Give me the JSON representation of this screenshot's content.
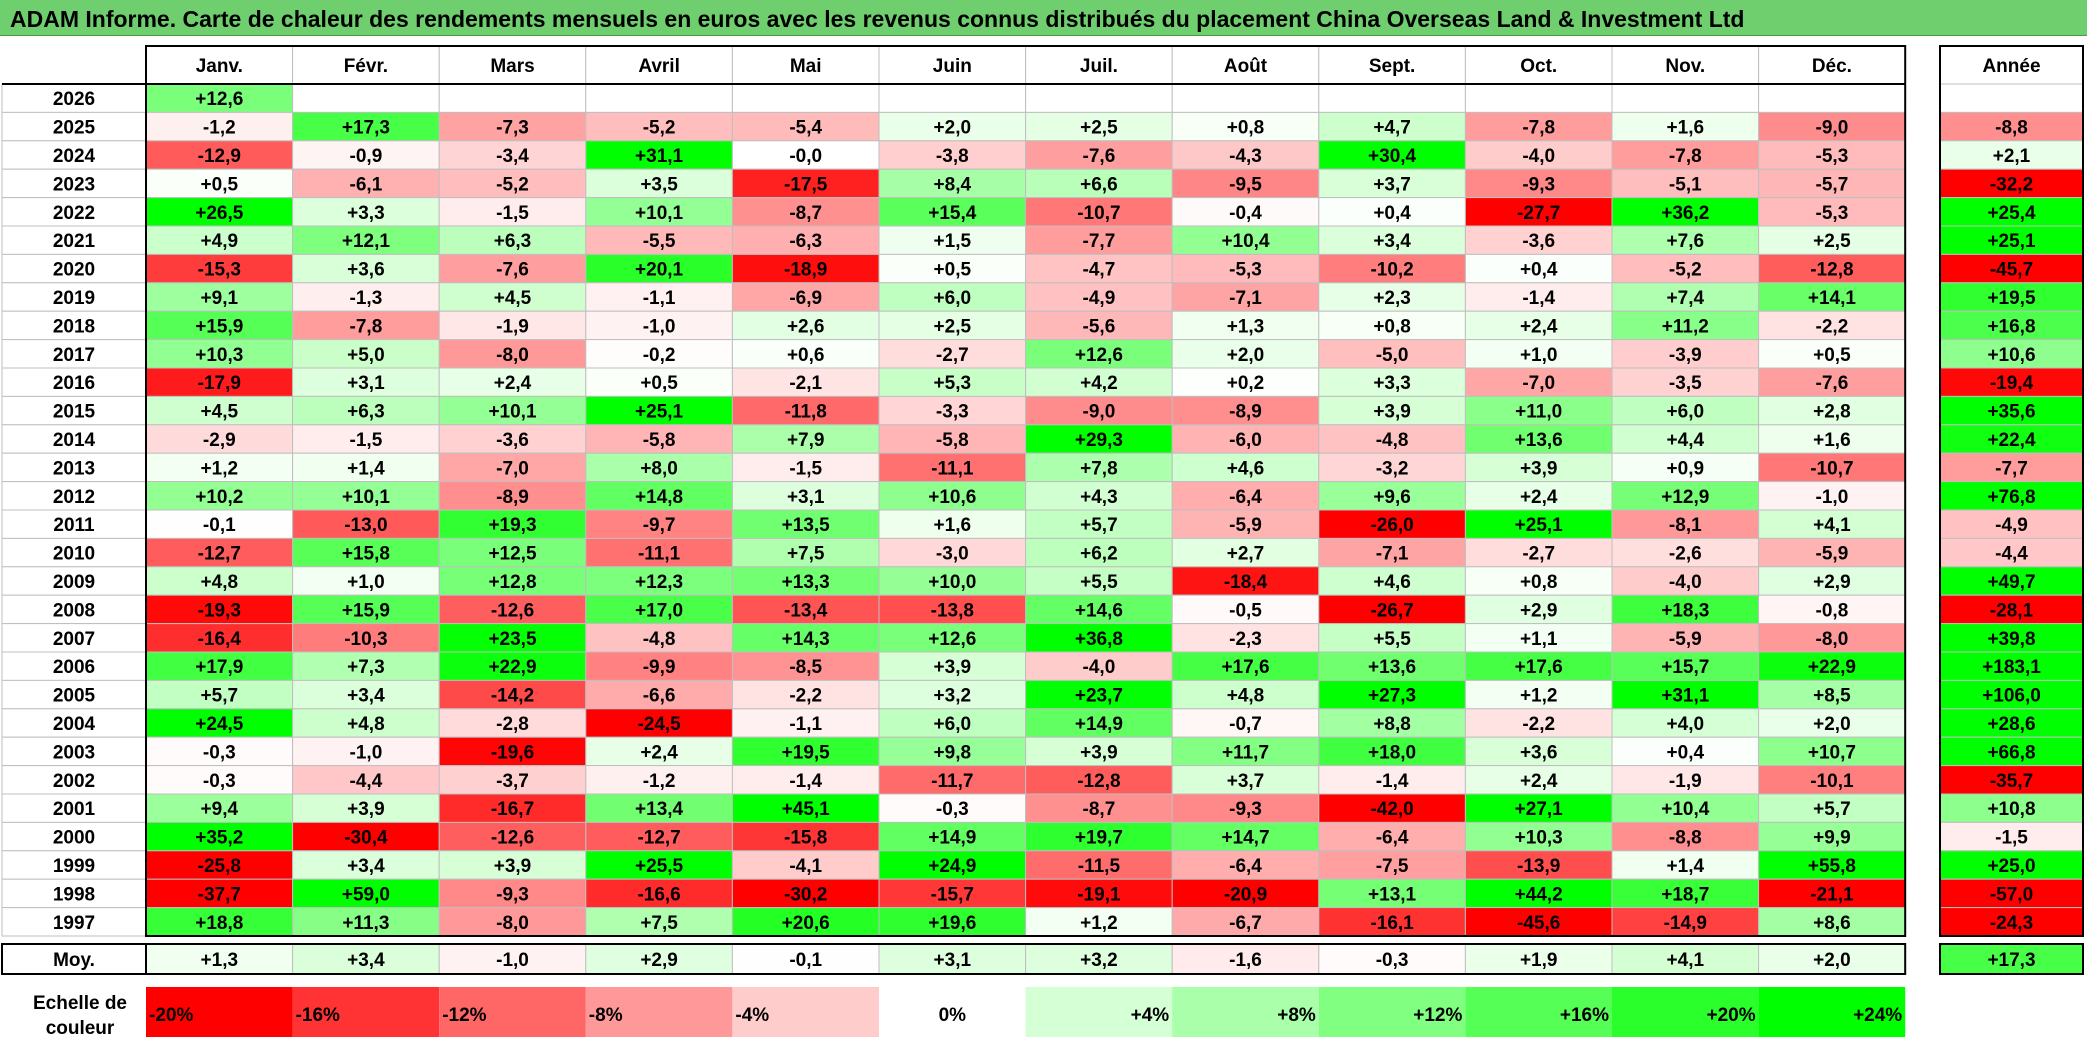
{
  "title": "ADAM Informe. Carte de chaleur des rendements mensuels en euros avec les revenus connus distribués du placement China Overseas Land & Investment Ltd",
  "chart_data": {
    "type": "heatmap",
    "months": [
      "Janv.",
      "Févr.",
      "Mars",
      "Avril",
      "Mai",
      "Juin",
      "Juil.",
      "Août",
      "Sept.",
      "Oct.",
      "Nov.",
      "Déc."
    ],
    "year_header": "Année",
    "rows": [
      {
        "year": "2026",
        "months": [
          "+12,6",
          "",
          "",
          "",
          "",
          "",
          "",
          "",
          "",
          "",
          "",
          ""
        ],
        "annual": ""
      },
      {
        "year": "2025",
        "months": [
          "-1,2",
          "+17,3",
          "-7,3",
          "-5,2",
          "-5,4",
          "+2,0",
          "+2,5",
          "+0,8",
          "+4,7",
          "-7,8",
          "+1,6",
          "-9,0"
        ],
        "annual": "-8,8"
      },
      {
        "year": "2024",
        "months": [
          "-12,9",
          "-0,9",
          "-3,4",
          "+31,1",
          "-0,0",
          "-3,8",
          "-7,6",
          "-4,3",
          "+30,4",
          "-4,0",
          "-7,8",
          "-5,3"
        ],
        "annual": "+2,1"
      },
      {
        "year": "2023",
        "months": [
          "+0,5",
          "-6,1",
          "-5,2",
          "+3,5",
          "-17,5",
          "+8,4",
          "+6,6",
          "-9,5",
          "+3,7",
          "-9,3",
          "-5,1",
          "-5,7"
        ],
        "annual": "-32,2"
      },
      {
        "year": "2022",
        "months": [
          "+26,5",
          "+3,3",
          "-1,5",
          "+10,1",
          "-8,7",
          "+15,4",
          "-10,7",
          "-0,4",
          "+0,4",
          "-27,7",
          "+36,2",
          "-5,3"
        ],
        "annual": "+25,4"
      },
      {
        "year": "2021",
        "months": [
          "+4,9",
          "+12,1",
          "+6,3",
          "-5,5",
          "-6,3",
          "+1,5",
          "-7,7",
          "+10,4",
          "+3,4",
          "-3,6",
          "+7,6",
          "+2,5"
        ],
        "annual": "+25,1"
      },
      {
        "year": "2020",
        "months": [
          "-15,3",
          "+3,6",
          "-7,6",
          "+20,1",
          "-18,9",
          "+0,5",
          "-4,7",
          "-5,3",
          "-10,2",
          "+0,4",
          "-5,2",
          "-12,8"
        ],
        "annual": "-45,7"
      },
      {
        "year": "2019",
        "months": [
          "+9,1",
          "-1,3",
          "+4,5",
          "-1,1",
          "-6,9",
          "+6,0",
          "-4,9",
          "-7,1",
          "+2,3",
          "-1,4",
          "+7,4",
          "+14,1"
        ],
        "annual": "+19,5"
      },
      {
        "year": "2018",
        "months": [
          "+15,9",
          "-7,8",
          "-1,9",
          "-1,0",
          "+2,6",
          "+2,5",
          "-5,6",
          "+1,3",
          "+0,8",
          "+2,4",
          "+11,2",
          "-2,2"
        ],
        "annual": "+16,8"
      },
      {
        "year": "2017",
        "months": [
          "+10,3",
          "+5,0",
          "-8,0",
          "-0,2",
          "+0,6",
          "-2,7",
          "+12,6",
          "+2,0",
          "-5,0",
          "+1,0",
          "-3,9",
          "+0,5"
        ],
        "annual": "+10,6"
      },
      {
        "year": "2016",
        "months": [
          "-17,9",
          "+3,1",
          "+2,4",
          "+0,5",
          "-2,1",
          "+5,3",
          "+4,2",
          "+0,2",
          "+3,3",
          "-7,0",
          "-3,5",
          "-7,6"
        ],
        "annual": "-19,4"
      },
      {
        "year": "2015",
        "months": [
          "+4,5",
          "+6,3",
          "+10,1",
          "+25,1",
          "-11,8",
          "-3,3",
          "-9,0",
          "-8,9",
          "+3,9",
          "+11,0",
          "+6,0",
          "+2,8"
        ],
        "annual": "+35,6"
      },
      {
        "year": "2014",
        "months": [
          "-2,9",
          "-1,5",
          "-3,6",
          "-5,8",
          "+7,9",
          "-5,8",
          "+29,3",
          "-6,0",
          "-4,8",
          "+13,6",
          "+4,4",
          "+1,6"
        ],
        "annual": "+22,4"
      },
      {
        "year": "2013",
        "months": [
          "+1,2",
          "+1,4",
          "-7,0",
          "+8,0",
          "-1,5",
          "-11,1",
          "+7,8",
          "+4,6",
          "-3,2",
          "+3,9",
          "+0,9",
          "-10,7"
        ],
        "annual": "-7,7"
      },
      {
        "year": "2012",
        "months": [
          "+10,2",
          "+10,1",
          "-8,9",
          "+14,8",
          "+3,1",
          "+10,6",
          "+4,3",
          "-6,4",
          "+9,6",
          "+2,4",
          "+12,9",
          "-1,0"
        ],
        "annual": "+76,8"
      },
      {
        "year": "2011",
        "months": [
          "-0,1",
          "-13,0",
          "+19,3",
          "-9,7",
          "+13,5",
          "+1,6",
          "+5,7",
          "-5,9",
          "-26,0",
          "+25,1",
          "-8,1",
          "+4,1"
        ],
        "annual": "-4,9"
      },
      {
        "year": "2010",
        "months": [
          "-12,7",
          "+15,8",
          "+12,5",
          "-11,1",
          "+7,5",
          "-3,0",
          "+6,2",
          "+2,7",
          "-7,1",
          "-2,7",
          "-2,6",
          "-5,9"
        ],
        "annual": "-4,4"
      },
      {
        "year": "2009",
        "months": [
          "+4,8",
          "+1,0",
          "+12,8",
          "+12,3",
          "+13,3",
          "+10,0",
          "+5,5",
          "-18,4",
          "+4,6",
          "+0,8",
          "-4,0",
          "+2,9"
        ],
        "annual": "+49,7"
      },
      {
        "year": "2008",
        "months": [
          "-19,3",
          "+15,9",
          "-12,6",
          "+17,0",
          "-13,4",
          "-13,8",
          "+14,6",
          "-0,5",
          "-26,7",
          "+2,9",
          "+18,3",
          "-0,8"
        ],
        "annual": "-28,1"
      },
      {
        "year": "2007",
        "months": [
          "-16,4",
          "-10,3",
          "+23,5",
          "-4,8",
          "+14,3",
          "+12,6",
          "+36,8",
          "-2,3",
          "+5,5",
          "+1,1",
          "-5,9",
          "-8,0"
        ],
        "annual": "+39,8"
      },
      {
        "year": "2006",
        "months": [
          "+17,9",
          "+7,3",
          "+22,9",
          "-9,9",
          "-8,5",
          "+3,9",
          "-4,0",
          "+17,6",
          "+13,6",
          "+17,6",
          "+15,7",
          "+22,9"
        ],
        "annual": "+183,1"
      },
      {
        "year": "2005",
        "months": [
          "+5,7",
          "+3,4",
          "-14,2",
          "-6,6",
          "-2,2",
          "+3,2",
          "+23,7",
          "+4,8",
          "+27,3",
          "+1,2",
          "+31,1",
          "+8,5"
        ],
        "annual": "+106,0"
      },
      {
        "year": "2004",
        "months": [
          "+24,5",
          "+4,8",
          "-2,8",
          "-24,5",
          "-1,1",
          "+6,0",
          "+14,9",
          "-0,7",
          "+8,8",
          "-2,2",
          "+4,0",
          "+2,0"
        ],
        "annual": "+28,6"
      },
      {
        "year": "2003",
        "months": [
          "-0,3",
          "-1,0",
          "-19,6",
          "+2,4",
          "+19,5",
          "+9,8",
          "+3,9",
          "+11,7",
          "+18,0",
          "+3,6",
          "+0,4",
          "+10,7"
        ],
        "annual": "+66,8"
      },
      {
        "year": "2002",
        "months": [
          "-0,3",
          "-4,4",
          "-3,7",
          "-1,2",
          "-1,4",
          "-11,7",
          "-12,8",
          "+3,7",
          "-1,4",
          "+2,4",
          "-1,9",
          "-10,1"
        ],
        "annual": "-35,7"
      },
      {
        "year": "2001",
        "months": [
          "+9,4",
          "+3,9",
          "-16,7",
          "+13,4",
          "+45,1",
          "-0,3",
          "-8,7",
          "-9,3",
          "-42,0",
          "+27,1",
          "+10,4",
          "+5,7"
        ],
        "annual": "+10,8"
      },
      {
        "year": "2000",
        "months": [
          "+35,2",
          "-30,4",
          "-12,6",
          "-12,7",
          "-15,8",
          "+14,9",
          "+19,7",
          "+14,7",
          "-6,4",
          "+10,3",
          "-8,8",
          "+9,9"
        ],
        "annual": "-1,5"
      },
      {
        "year": "1999",
        "months": [
          "-25,8",
          "+3,4",
          "+3,9",
          "+25,5",
          "-4,1",
          "+24,9",
          "-11,5",
          "-6,4",
          "-7,5",
          "-13,9",
          "+1,4",
          "+55,8"
        ],
        "annual": "+25,0"
      },
      {
        "year": "1998",
        "months": [
          "-37,7",
          "+59,0",
          "-9,3",
          "-16,6",
          "-30,2",
          "-15,7",
          "-19,1",
          "-20,9",
          "+13,1",
          "+44,2",
          "+18,7",
          "-21,1"
        ],
        "annual": "-57,0"
      },
      {
        "year": "1997",
        "months": [
          "+18,8",
          "+11,3",
          "-8,0",
          "+7,5",
          "+20,6",
          "+19,6",
          "+1,2",
          "-6,7",
          "-16,1",
          "-45,6",
          "-14,9",
          "+8,6"
        ],
        "annual": "-24,3"
      }
    ],
    "average": {
      "label": "Moy.",
      "months": [
        "+1,3",
        "+3,4",
        "-1,0",
        "+2,9",
        "-0,1",
        "+3,1",
        "+3,2",
        "-1,6",
        "-0,3",
        "+1,9",
        "+4,1",
        "+2,0"
      ],
      "annual": "+17,3"
    },
    "color_scale": {
      "label_line1": "Echelle de",
      "label_line2": "couleur",
      "stops": [
        "-20%",
        "-16%",
        "-12%",
        "-8%",
        "-4%",
        "0%",
        "+4%",
        "+8%",
        "+12%",
        "+16%",
        "+20%",
        "+24%"
      ],
      "stop_values": [
        -20,
        -16,
        -12,
        -8,
        -4,
        0,
        4,
        8,
        12,
        16,
        20,
        24
      ]
    },
    "colors": {
      "negative_max": "#ff0000",
      "neutral": "#ffffff",
      "positive_max": "#00ff00"
    }
  }
}
